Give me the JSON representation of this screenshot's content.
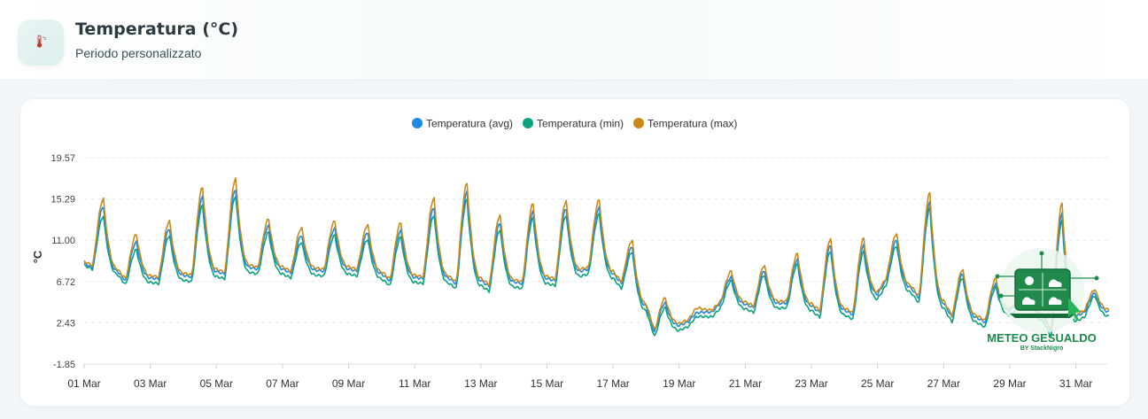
{
  "header": {
    "title": "Temperatura (°C)",
    "subtitle": "Periodo personalizzato",
    "icon": "thermometer-icon"
  },
  "watermark": {
    "title": "METEO GESUALDO",
    "byline": "BY StackNigro"
  },
  "chart_data": {
    "type": "line",
    "ylabel": "°C",
    "ylim": [
      -1.85,
      19.57
    ],
    "yticks": [
      "19.57",
      "15.29",
      "11.00",
      "6.72",
      "2.43",
      "-1.85"
    ],
    "xticks": [
      "01 Mar",
      "03 Mar",
      "05 Mar",
      "07 Mar",
      "09 Mar",
      "11 Mar",
      "13 Mar",
      "15 Mar",
      "17 Mar",
      "19 Mar",
      "21 Mar",
      "23 Mar",
      "25 Mar",
      "27 Mar",
      "29 Mar",
      "31 Mar"
    ],
    "legend_position": "top",
    "grid": true,
    "x_unit": "days from 01 Mar",
    "series": [
      {
        "name": "Temperatura (avg)",
        "color": "#1e88e5",
        "daily_min": [
          8.2,
          6.8,
          7.0,
          7.2,
          7.5,
          8.0,
          7.6,
          7.8,
          7.8,
          6.8,
          7.0,
          6.5,
          6.2,
          6.5,
          6.8,
          8.0,
          6.5,
          1.5,
          2.5,
          4.5,
          4.0,
          4.5,
          3.5,
          3.3,
          6.8,
          5.0,
          3.0,
          2.5,
          4.5,
          1.5,
          3.5
        ],
        "daily_max": [
          14.5,
          10.8,
          12.2,
          15.5,
          16.3,
          12.5,
          11.5,
          12.2,
          11.8,
          12.0,
          14.4,
          16.0,
          12.8,
          14.0,
          14.3,
          14.4,
          10.3,
          4.5,
          3.5,
          7.2,
          7.8,
          9.0,
          10.5,
          10.5,
          11.0,
          15.0,
          7.5,
          6.5,
          7.0,
          13.8,
          5.5
        ]
      },
      {
        "name": "Temperatura (min)",
        "color": "#0aa37f",
        "daily_min": [
          8.0,
          6.4,
          6.5,
          6.7,
          7.0,
          7.5,
          7.1,
          7.3,
          7.3,
          6.3,
          6.5,
          6.0,
          5.7,
          6.0,
          6.3,
          7.5,
          6.0,
          1.0,
          2.0,
          4.0,
          3.5,
          4.0,
          3.0,
          2.8,
          6.3,
          4.5,
          2.5,
          2.0,
          4.0,
          1.0,
          3.0
        ],
        "daily_max": [
          13.5,
          10.0,
          11.5,
          14.6,
          15.6,
          11.8,
          10.8,
          11.5,
          11.1,
          11.3,
          13.6,
          15.2,
          12.1,
          13.3,
          13.6,
          13.7,
          9.8,
          4.0,
          3.1,
          6.8,
          7.4,
          8.5,
          9.9,
          9.8,
          10.4,
          14.3,
          7.1,
          6.1,
          6.6,
          13.0,
          5.2
        ]
      },
      {
        "name": "Temperatura (max)",
        "color": "#c98a1a",
        "daily_min": [
          8.4,
          7.0,
          7.2,
          7.4,
          7.7,
          8.2,
          7.8,
          8.0,
          8.0,
          7.0,
          7.2,
          6.7,
          6.4,
          6.7,
          7.0,
          8.2,
          6.7,
          1.7,
          2.7,
          4.7,
          4.2,
          4.7,
          3.7,
          3.5,
          7.0,
          5.2,
          3.2,
          2.7,
          4.7,
          1.7,
          3.7
        ],
        "daily_max": [
          15.3,
          11.6,
          13.0,
          16.5,
          17.4,
          13.2,
          12.3,
          13.0,
          12.6,
          12.8,
          15.4,
          16.9,
          13.6,
          14.8,
          15.1,
          15.2,
          11.0,
          5.0,
          4.0,
          7.8,
          8.4,
          9.6,
          11.2,
          11.2,
          11.7,
          15.9,
          8.0,
          7.0,
          7.6,
          14.8,
          5.9
        ]
      }
    ]
  }
}
